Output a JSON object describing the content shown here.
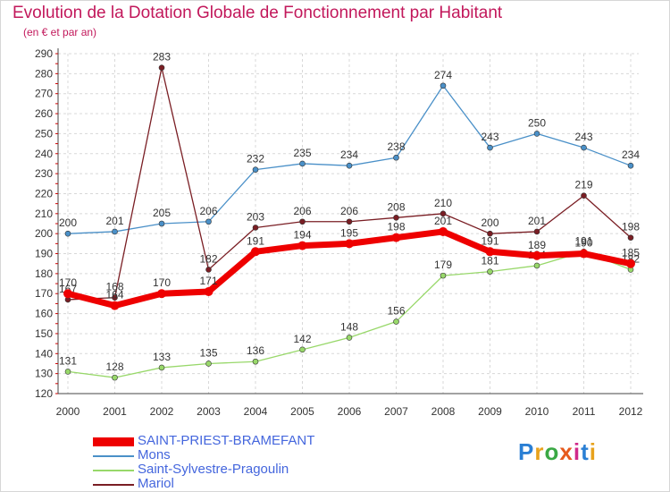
{
  "chart_data": {
    "type": "line",
    "title": "Evolution de la Dotation Globale de Fonctionnement par Habitant",
    "subtitle": "(en € et par an)",
    "x": [
      "2000",
      "2001",
      "2002",
      "2003",
      "2004",
      "2005",
      "2006",
      "2007",
      "2008",
      "2009",
      "2010",
      "2011",
      "2012"
    ],
    "ylim": [
      120,
      290
    ],
    "yticks": [
      120,
      130,
      140,
      150,
      160,
      170,
      180,
      190,
      200,
      210,
      220,
      230,
      240,
      250,
      260,
      270,
      280,
      290
    ],
    "grid": true,
    "legend_position": "bottom-left",
    "series": [
      {
        "name": "SAINT-PRIEST-BRAMEFANT",
        "color": "#ee0000",
        "values": [
          170,
          164,
          170,
          171,
          191,
          194,
          195,
          198,
          201,
          191,
          189,
          190,
          185
        ]
      },
      {
        "name": "Mons",
        "color": "#4a90c8",
        "values": [
          200,
          201,
          205,
          206,
          232,
          235,
          234,
          238,
          274,
          243,
          250,
          243,
          234
        ]
      },
      {
        "name": "Saint-Sylvestre-Pragoulin",
        "color": "#98d86a",
        "values": [
          131,
          128,
          133,
          135,
          136,
          142,
          148,
          156,
          179,
          181,
          184,
          191,
          182
        ]
      },
      {
        "name": "Mariol",
        "color": "#7a1e24",
        "values": [
          167,
          168,
          283,
          182,
          203,
          206,
          206,
          208,
          210,
          200,
          201,
          219,
          198
        ]
      }
    ]
  },
  "legend": {
    "label_colors": {
      "SAINT-PRIEST-BRAMEFANT": "#4466dd",
      "Mons": "#4466dd",
      "Saint-Sylvestre-Pragoulin": "#4466dd",
      "Mariol": "#4466dd"
    }
  },
  "logo": {
    "text": "Proxiti"
  }
}
